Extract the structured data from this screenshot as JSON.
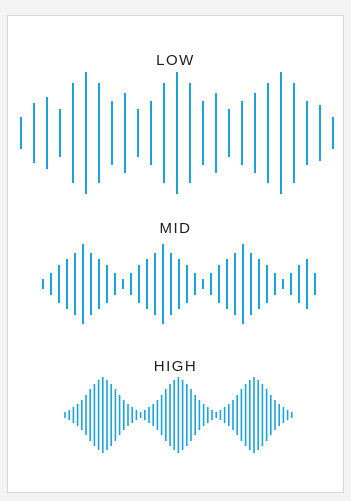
{
  "accent_color": "#1aa3dc",
  "sections": [
    {
      "label": "LOW"
    },
    {
      "label": "MID"
    },
    {
      "label": "HIGH"
    }
  ]
}
